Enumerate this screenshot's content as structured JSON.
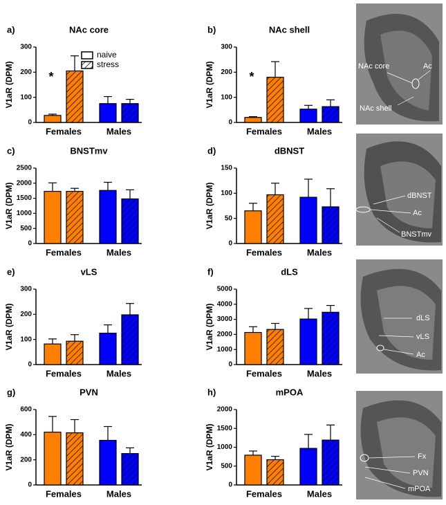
{
  "chart_data": [
    {
      "type": "bar",
      "panel": "a)",
      "title": "NAc core",
      "ylabel": "V1aR (DPM)",
      "categories": [
        "Females",
        "Males"
      ],
      "category_colors": [
        "#ff8000",
        "#0000ff"
      ],
      "series": [
        {
          "name": "naive",
          "hatch": false,
          "values": [
            28,
            75
          ],
          "errors": [
            5,
            28
          ]
        },
        {
          "name": "stress",
          "hatch": true,
          "values": [
            205,
            75
          ],
          "errors": [
            60,
            17
          ]
        }
      ],
      "ylim": [
        0,
        300
      ],
      "yticks": [
        0,
        100,
        200,
        300
      ],
      "annotation": "*"
    },
    {
      "type": "bar",
      "panel": "b)",
      "title": "NAc shell",
      "ylabel": "V1aR (DPM)",
      "categories": [
        "Females",
        "Males"
      ],
      "category_colors": [
        "#ff8000",
        "#0000ff"
      ],
      "series": [
        {
          "hatch": false,
          "values": [
            20,
            53
          ],
          "errors": [
            3,
            15
          ]
        },
        {
          "hatch": true,
          "values": [
            180,
            63
          ],
          "errors": [
            62,
            27
          ]
        }
      ],
      "ylim": [
        0,
        300
      ],
      "yticks": [
        0,
        100,
        200,
        300
      ],
      "annotation": "*"
    },
    {
      "type": "bar",
      "panel": "c)",
      "title": "BNSTmv",
      "ylabel": "V1aR (DPM)",
      "categories": [
        "Females",
        "Males"
      ],
      "category_colors": [
        "#ff8000",
        "#0000ff"
      ],
      "series": [
        {
          "hatch": false,
          "values": [
            1730,
            1760
          ],
          "errors": [
            280,
            270
          ]
        },
        {
          "hatch": true,
          "values": [
            1730,
            1480
          ],
          "errors": [
            100,
            300
          ]
        }
      ],
      "ylim": [
        0,
        2500
      ],
      "yticks": [
        0,
        500,
        1000,
        1500,
        2000,
        2500
      ]
    },
    {
      "type": "bar",
      "panel": "d)",
      "title": "dBNST",
      "ylabel": "V1aR (DPM)",
      "categories": [
        "Females",
        "Males"
      ],
      "category_colors": [
        "#ff8000",
        "#0000ff"
      ],
      "series": [
        {
          "hatch": false,
          "values": [
            65,
            92
          ],
          "errors": [
            15,
            36
          ]
        },
        {
          "hatch": true,
          "values": [
            97,
            73
          ],
          "errors": [
            23,
            36
          ]
        }
      ],
      "ylim": [
        0,
        150
      ],
      "yticks": [
        0,
        50,
        100,
        150
      ]
    },
    {
      "type": "bar",
      "panel": "e)",
      "title": "vLS",
      "ylabel": "V1aR (DPM)",
      "categories": [
        "Females",
        "Males"
      ],
      "category_colors": [
        "#ff8000",
        "#0000ff"
      ],
      "series": [
        {
          "hatch": false,
          "values": [
            82,
            125
          ],
          "errors": [
            20,
            33
          ]
        },
        {
          "hatch": true,
          "values": [
            93,
            198
          ],
          "errors": [
            26,
            45
          ]
        }
      ],
      "ylim": [
        0,
        300
      ],
      "yticks": [
        0,
        100,
        200,
        300
      ]
    },
    {
      "type": "bar",
      "panel": "f)",
      "title": "dLS",
      "ylabel": "V1aR (DPM)",
      "categories": [
        "Females",
        "Males"
      ],
      "category_colors": [
        "#ff8000",
        "#0000ff"
      ],
      "series": [
        {
          "hatch": false,
          "values": [
            2130,
            3020
          ],
          "errors": [
            380,
            700
          ]
        },
        {
          "hatch": true,
          "values": [
            2330,
            3470
          ],
          "errors": [
            400,
            450
          ]
        }
      ],
      "ylim": [
        0,
        5000
      ],
      "yticks": [
        0,
        1000,
        2000,
        3000,
        4000,
        5000
      ]
    },
    {
      "type": "bar",
      "panel": "g)",
      "title": "PVN",
      "ylabel": "V1aR (DPM)",
      "categories": [
        "Females",
        "Males"
      ],
      "category_colors": [
        "#ff8000",
        "#0000ff"
      ],
      "series": [
        {
          "hatch": false,
          "values": [
            420,
            355
          ],
          "errors": [
            125,
            110
          ]
        },
        {
          "hatch": true,
          "values": [
            415,
            250
          ],
          "errors": [
            105,
            45
          ]
        }
      ],
      "ylim": [
        0,
        600
      ],
      "yticks": [
        0,
        200,
        400,
        600
      ]
    },
    {
      "type": "bar",
      "panel": "h)",
      "title": "mPOA",
      "ylabel": "V1aR (DPM)",
      "categories": [
        "Females",
        "Males"
      ],
      "category_colors": [
        "#ff8000",
        "#0000ff"
      ],
      "series": [
        {
          "hatch": false,
          "values": [
            790,
            970
          ],
          "errors": [
            110,
            370
          ]
        },
        {
          "hatch": true,
          "values": [
            670,
            1190
          ],
          "errors": [
            90,
            400
          ]
        }
      ],
      "ylim": [
        0,
        2000
      ],
      "yticks": [
        0,
        500,
        1000,
        1500,
        2000
      ]
    }
  ],
  "images": [
    {
      "labels": [
        "Ac",
        "NAc core",
        "NAc shell"
      ]
    },
    {
      "labels": [
        "dBNST",
        "Ac",
        "BNSTmv"
      ]
    },
    {
      "labels": [
        "dLS",
        "vLS",
        "Ac"
      ]
    },
    {
      "labels": [
        "Fx",
        "PVN",
        "mPOA"
      ]
    }
  ]
}
